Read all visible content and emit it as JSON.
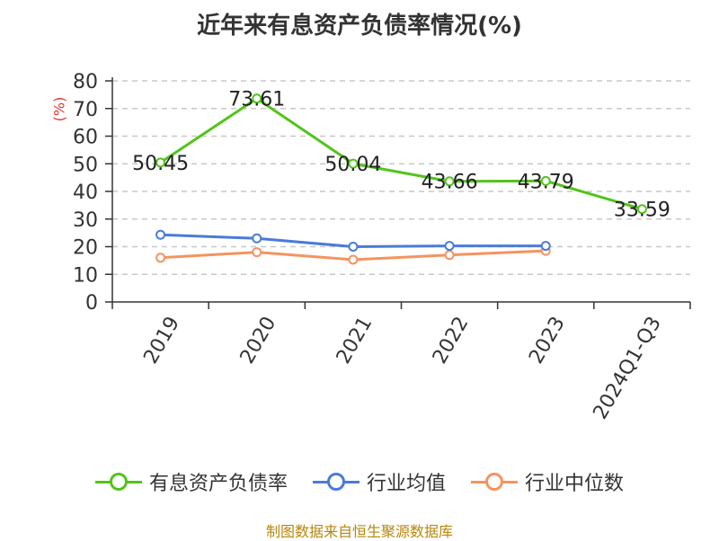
{
  "chart_data": {
    "type": "line",
    "title": "近年来有息资产负债率情况(%)",
    "ylabel": "(%)",
    "categories": [
      "2019",
      "2020",
      "2021",
      "2022",
      "2023",
      "2024Q1-Q3"
    ],
    "yticks": [
      "0",
      "10",
      "20",
      "30",
      "40",
      "50",
      "60",
      "70",
      "80"
    ],
    "ylim": [
      0,
      80
    ],
    "grid": true,
    "legend_position": "bottom",
    "series": [
      {
        "name": "有息资产负债率",
        "color": "#52c41a",
        "values": [
          50.45,
          73.61,
          50.04,
          43.66,
          43.79,
          33.59
        ],
        "labels": [
          "50.45",
          "73.61",
          "50.04",
          "43.66",
          "43.79",
          "33.59"
        ]
      },
      {
        "name": "行业均值",
        "color": "#4a7bd8",
        "values": [
          24.3,
          23.0,
          20.0,
          20.3,
          20.3,
          null
        ]
      },
      {
        "name": "行业中位数",
        "color": "#f5935e",
        "values": [
          16.0,
          18.0,
          15.3,
          17.0,
          18.5,
          null
        ]
      }
    ]
  },
  "source": "制图数据来自恒生聚源数据库"
}
